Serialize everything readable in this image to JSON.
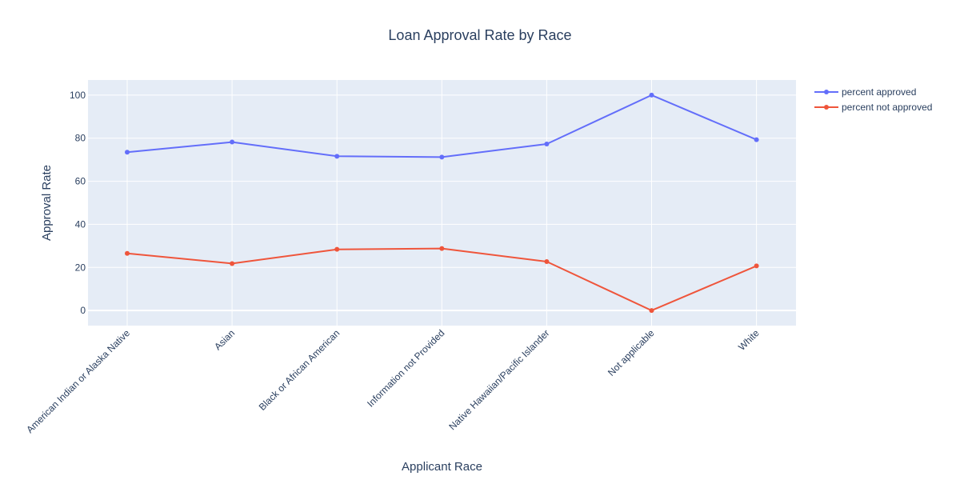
{
  "chart_data": {
    "type": "line",
    "title": "Loan Approval Rate by Race",
    "xlabel": "Applicant Race",
    "ylabel": "Approval Rate",
    "categories": [
      "American Indian or Alaska Native",
      "Asian",
      "Black or African American",
      "Information not Provided",
      "Native Hawaiian/Pacific Islander",
      "Not applicable",
      "White"
    ],
    "ylim": [
      -7,
      107
    ],
    "yticks": [
      0,
      20,
      40,
      60,
      80,
      100
    ],
    "grid": true,
    "legend_position": "top-right",
    "series": [
      {
        "name": "percent approved",
        "color": "#636efa",
        "values": [
          73.5,
          78.2,
          71.6,
          71.2,
          77.3,
          100,
          79.3
        ]
      },
      {
        "name": "percent not approved",
        "color": "#ef553b",
        "values": [
          26.5,
          21.8,
          28.4,
          28.8,
          22.7,
          0,
          20.7
        ]
      }
    ]
  }
}
